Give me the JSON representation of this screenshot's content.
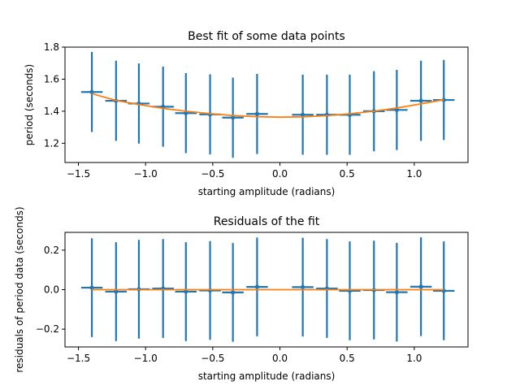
{
  "colors": {
    "data": "#1f77b4",
    "fit": "#ff7f0e",
    "axis": "#000000",
    "background": "#ffffff"
  },
  "chart_data": [
    {
      "type": "scatter",
      "title": "Best fit of some data points",
      "xlabel": "starting amplitude (radians)",
      "ylabel": "period (seconds)",
      "xlim": [
        -1.6,
        1.4
      ],
      "ylim": [
        1.08,
        1.8
      ],
      "xticks": [
        -1.5,
        -1.0,
        -0.5,
        0.0,
        0.5,
        1.0
      ],
      "xtick_labels": [
        "−1.5",
        "−1.0",
        "−0.5",
        "0.0",
        "0.5",
        "1.0"
      ],
      "yticks": [
        1.2,
        1.4,
        1.6,
        1.8
      ],
      "ytick_labels": [
        "1.2",
        "1.4",
        "1.6",
        "1.8"
      ],
      "grid": false,
      "legend": "none",
      "series": [
        {
          "kind": "errorbar",
          "x": [
            -1.4,
            -1.22,
            -1.05,
            -0.87,
            -0.7,
            -0.52,
            -0.35,
            -0.17,
            0.17,
            0.35,
            0.52,
            0.7,
            0.87,
            1.05,
            1.22
          ],
          "y": [
            1.52,
            1.465,
            1.448,
            1.428,
            1.388,
            1.38,
            1.36,
            1.383,
            1.378,
            1.378,
            1.378,
            1.4,
            1.408,
            1.465,
            1.47
          ],
          "xerr": 0.08,
          "yerr": 0.25
        },
        {
          "kind": "line",
          "x": [
            -1.4,
            -1.22,
            -1.05,
            -0.87,
            -0.7,
            -0.52,
            -0.35,
            -0.17,
            0.0,
            0.17,
            0.35,
            0.52,
            0.7,
            0.87,
            1.05,
            1.22
          ],
          "y": [
            1.51,
            1.467,
            1.442,
            1.418,
            1.4,
            1.385,
            1.373,
            1.366,
            1.363,
            1.365,
            1.372,
            1.384,
            1.4,
            1.42,
            1.446,
            1.472
          ]
        }
      ]
    },
    {
      "type": "scatter",
      "title": "Residuals of the fit",
      "xlabel": "starting amplitude (radians)",
      "ylabel": "residuals of period data (seconds)",
      "xlim": [
        -1.6,
        1.4
      ],
      "ylim": [
        -0.29,
        0.29
      ],
      "xticks": [
        -1.5,
        -1.0,
        -0.5,
        0.0,
        0.5,
        1.0
      ],
      "xtick_labels": [
        "−1.5",
        "−1.0",
        "−0.5",
        "0.0",
        "0.5",
        "1.0"
      ],
      "yticks": [
        -0.2,
        0.0,
        0.2
      ],
      "ytick_labels": [
        "−0.2",
        "0.0",
        "0.2"
      ],
      "grid": false,
      "legend": "none",
      "series": [
        {
          "kind": "errorbar",
          "x": [
            -1.4,
            -1.22,
            -1.05,
            -0.87,
            -0.7,
            -0.52,
            -0.35,
            -0.17,
            0.17,
            0.35,
            0.52,
            0.7,
            0.87,
            1.05,
            1.22
          ],
          "y": [
            0.01,
            -0.01,
            0.002,
            0.006,
            -0.01,
            -0.004,
            -0.014,
            0.014,
            0.013,
            0.006,
            -0.006,
            -0.002,
            -0.013,
            0.015,
            -0.006
          ],
          "xerr": 0.08,
          "yerr": 0.25
        },
        {
          "kind": "line",
          "x": [
            -1.4,
            1.22
          ],
          "y": [
            0.0,
            0.0
          ]
        }
      ]
    }
  ]
}
